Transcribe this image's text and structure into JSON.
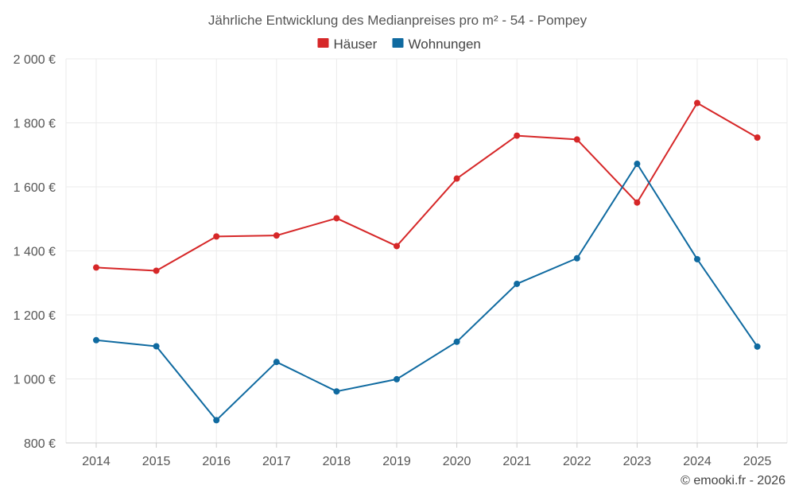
{
  "chart_data": {
    "type": "line",
    "title": "Jährliche Entwicklung des Medianpreises pro m² - 54 - Pompey",
    "categories": [
      "2014",
      "2015",
      "2016",
      "2017",
      "2018",
      "2019",
      "2020",
      "2021",
      "2022",
      "2023",
      "2024",
      "2025"
    ],
    "series": [
      {
        "name": "Häuser",
        "color": "#d62728",
        "values": [
          1348,
          1338,
          1445,
          1448,
          1502,
          1415,
          1626,
          1760,
          1748,
          1551,
          1862,
          1754
        ]
      },
      {
        "name": "Wohnungen",
        "color": "#0f6aa0",
        "values": [
          1121,
          1102,
          871,
          1053,
          961,
          999,
          1116,
          1297,
          1377,
          1672,
          1374,
          1101
        ]
      }
    ],
    "ylim": [
      800,
      2000
    ],
    "yticks": [
      800,
      1000,
      1200,
      1400,
      1600,
      1800,
      2000
    ],
    "ytick_labels": [
      "800 €",
      "1 000 €",
      "1 200 €",
      "1 400 €",
      "1 600 €",
      "1 800 €",
      "2 000 €"
    ],
    "xlabel": "",
    "ylabel": "",
    "legend": "top-center",
    "grid": true
  },
  "credit": "© emooki.fr - 2026"
}
